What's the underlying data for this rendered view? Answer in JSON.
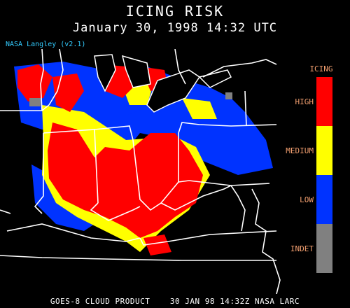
{
  "header": {
    "title": "ICING RISK",
    "subtitle": "January 30, 1998 14:32 UTC",
    "version_label": "NASA Langley (v2.1)"
  },
  "footer": {
    "text": "GOES-8 CLOUD PRODUCT    30 JAN 98 14:32Z NASA LARC"
  },
  "legend": {
    "title": "ICING",
    "items": [
      {
        "label": "HIGH",
        "color": "#ff0000"
      },
      {
        "label": "MEDIUM",
        "color": "#ffff00"
      },
      {
        "label": "LOW",
        "color": "#0033ff"
      },
      {
        "label": "INDET",
        "color": "#808080"
      }
    ]
  },
  "colors": {
    "background": "#000000",
    "boundaries": "#ffffff",
    "version_text": "#33ccff",
    "legend_text": "#f4a070"
  }
}
